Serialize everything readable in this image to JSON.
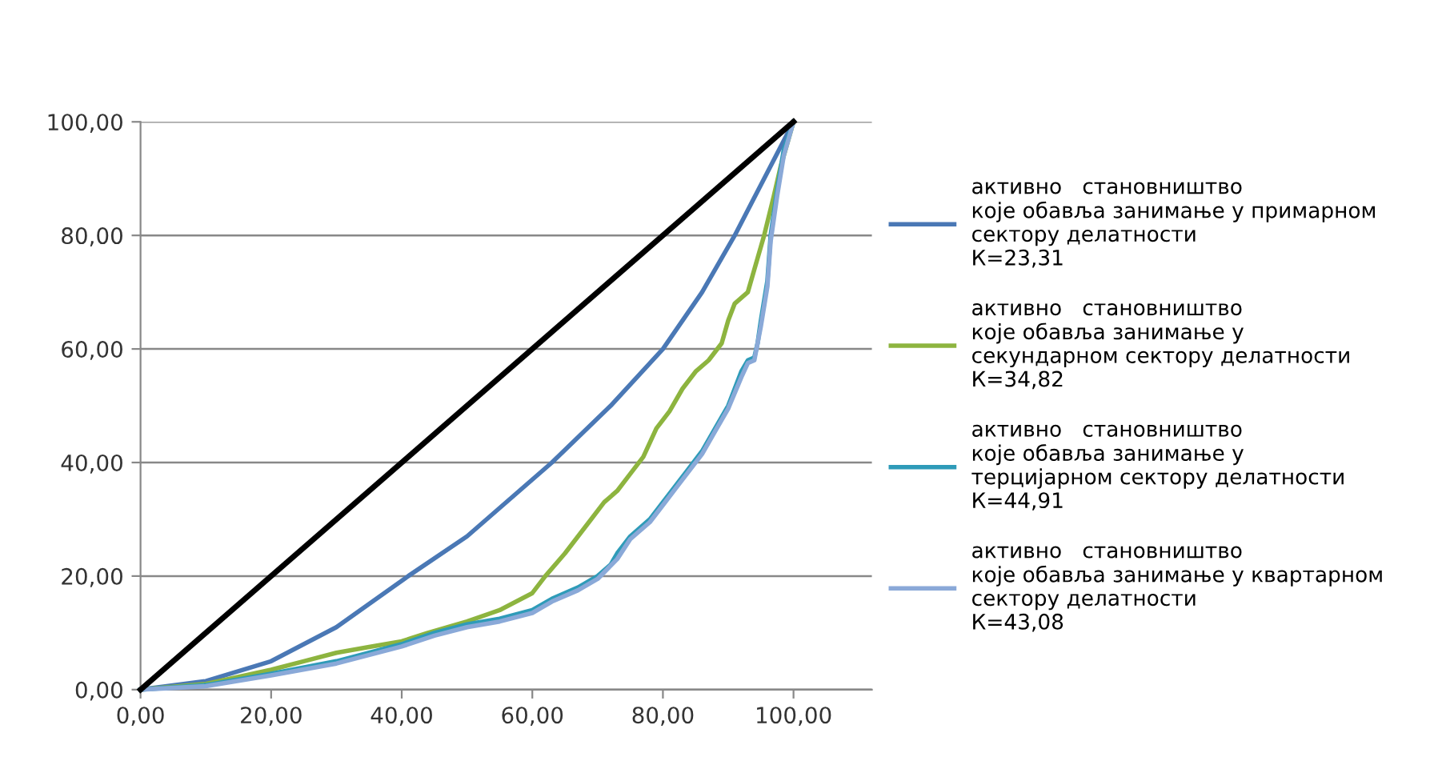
{
  "chart_data": {
    "type": "line",
    "xlim": [
      0,
      112
    ],
    "ylim": [
      0,
      100
    ],
    "xticks": [
      {
        "value": 0,
        "label": "0,00"
      },
      {
        "value": 20,
        "label": "20,00"
      },
      {
        "value": 40,
        "label": "40,00"
      },
      {
        "value": 60,
        "label": "60,00"
      },
      {
        "value": 80,
        "label": "80,00"
      },
      {
        "value": 100,
        "label": "100,00"
      }
    ],
    "yticks": [
      {
        "value": 0,
        "label": "0,00"
      },
      {
        "value": 20,
        "label": "20,00"
      },
      {
        "value": 40,
        "label": "40,00"
      },
      {
        "value": 60,
        "label": "60,00"
      },
      {
        "value": 80,
        "label": "80,00"
      },
      {
        "value": 100,
        "label": "100,00"
      }
    ],
    "grid": "y",
    "legend": "right",
    "marker": "none",
    "line_style": "solid",
    "series": [
      {
        "name": "активно   становништво\nкоје обавља занимање у примарном\nсектору делатности\nК=23,31",
        "color": "#4a78b5",
        "x": [
          0,
          10,
          20,
          30,
          41,
          50,
          63,
          72,
          80,
          86,
          91,
          95.5,
          100
        ],
        "values": [
          0,
          1.5,
          5,
          11,
          20,
          27,
          40,
          50,
          60,
          70,
          80,
          90,
          100
        ]
      },
      {
        "name": "активно   становништво\nкоје обавља занимање у\nсекундарном сектору делатности\nК=34,82",
        "color": "#8db43f",
        "x": [
          0,
          10,
          20,
          25,
          30,
          35,
          40,
          44,
          50,
          55,
          60,
          62,
          65,
          67,
          69,
          71,
          73,
          75,
          77,
          79,
          81,
          83,
          85,
          87,
          89,
          90,
          91,
          93,
          94,
          95.5,
          97,
          98,
          100
        ],
        "values": [
          0,
          1,
          3.5,
          5,
          6.5,
          7.5,
          8.5,
          10,
          12,
          14,
          17,
          20,
          24,
          27,
          30,
          33,
          35,
          38,
          41,
          46,
          49,
          53,
          56,
          58,
          61,
          65,
          68,
          70,
          74,
          80,
          87,
          92,
          100
        ]
      },
      {
        "name": "активно   становништво\nкоје обавља занимање у\nтерцијарном сектору делатности\nК=44,91",
        "color": "#2e9bb8",
        "x": [
          0,
          10,
          20,
          30,
          40,
          45,
          50,
          55,
          60,
          63,
          67,
          70,
          72,
          73,
          75,
          78,
          80,
          82,
          84,
          86,
          88,
          90,
          91,
          92,
          93,
          94,
          94.5,
          95,
          96,
          96.5,
          97.5,
          98.5,
          100
        ],
        "values": [
          0,
          0.8,
          2.8,
          5,
          8,
          10,
          11.5,
          12.5,
          14,
          16,
          18,
          20,
          22,
          24,
          27,
          30,
          33,
          36,
          39,
          42,
          46,
          50,
          53,
          56,
          58,
          58.5,
          61,
          65,
          72,
          80,
          88,
          95,
          100
        ]
      },
      {
        "name": "активно   становништво\nкоје обавља занимање у квартарном\nсектору делатности\nК=43,08",
        "color": "#8aa9d8",
        "x": [
          0,
          10,
          20,
          30,
          40,
          45,
          50,
          55,
          60,
          63,
          67,
          70,
          73,
          75,
          78,
          80,
          82,
          84,
          86,
          88,
          90,
          92,
          93,
          94,
          95,
          96,
          96.5,
          97.5,
          98.5,
          100
        ],
        "values": [
          0,
          0.6,
          2.5,
          4.6,
          7.6,
          9.5,
          11,
          12,
          13.5,
          15.5,
          17.5,
          19.5,
          23,
          26.5,
          29.5,
          32.5,
          35.5,
          38.5,
          41.5,
          45.5,
          49.5,
          55,
          57.5,
          58,
          64,
          71,
          79,
          87,
          94,
          100
        ]
      },
      {
        "color": "#000000",
        "x": [
          0,
          100
        ],
        "values": [
          0,
          100
        ]
      }
    ]
  }
}
